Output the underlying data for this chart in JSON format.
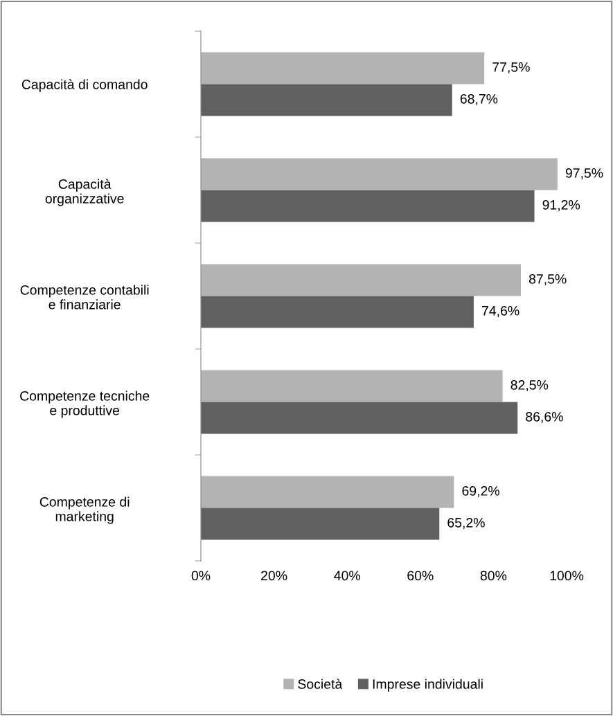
{
  "chart_data": {
    "type": "bar",
    "orientation": "horizontal",
    "categories": [
      "Capacità di comando",
      "Capacità\norganizzative",
      "Competenze contabili\ne finanziarie",
      "Competenze tecniche\ne produttive",
      "Competenze di\nmarketing"
    ],
    "series": [
      {
        "name": "Società",
        "color": "#b3b3b3",
        "values": [
          77.5,
          97.5,
          87.5,
          82.5,
          69.2
        ],
        "value_labels": [
          "77,5%",
          "97,5%",
          "87,5%",
          "82,5%",
          "69,2%"
        ]
      },
      {
        "name": "Imprese individuali",
        "color": "#606060",
        "values": [
          68.7,
          91.2,
          74.6,
          86.6,
          65.2
        ],
        "value_labels": [
          "68,7%",
          "91,2%",
          "74,6%",
          "86,6%",
          "65,2%"
        ]
      }
    ],
    "xlim": [
      0,
      100
    ],
    "xticks": [
      {
        "value": 0,
        "label": "0%"
      },
      {
        "value": 20,
        "label": "20%"
      },
      {
        "value": 40,
        "label": "40%"
      },
      {
        "value": 60,
        "label": "60%"
      },
      {
        "value": 80,
        "label": "80%"
      },
      {
        "value": 100,
        "label": "100%"
      }
    ],
    "grid": false,
    "legend": "bottom"
  }
}
